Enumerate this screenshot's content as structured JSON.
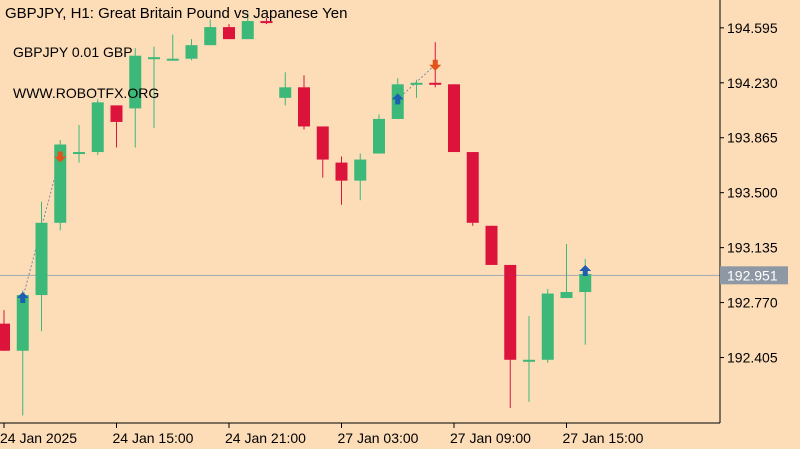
{
  "header": {
    "title": "GBPJPY, H1:  Great Britain Pound vs Japanese Yen",
    "lines": [
      "GBPJPY 0.01 GBP",
      "WWW.ROBOTFX.ORG"
    ]
  },
  "colors": {
    "background": "#fddcb8",
    "bull": "#3cb878",
    "bear": "#dc143c",
    "buy_arrow": "#1e5eb0",
    "sell_arrow": "#e2521b",
    "price_line": "#a0a8b4",
    "price_tag": "#8e98a4",
    "axis": "#000000",
    "connector": "#7a8aa0"
  },
  "chart_data": {
    "type": "candlestick",
    "symbol": "GBPJPY",
    "timeframe": "H1",
    "ylim": [
      191.97,
      194.78
    ],
    "y_ticks": [
      "194.595",
      "194.230",
      "193.865",
      "193.500",
      "193.135",
      "192.770",
      "192.405"
    ],
    "x_ticks": [
      {
        "label": "24 Jan 2025",
        "index": 0
      },
      {
        "label": "24 Jan 15:00",
        "index": 6
      },
      {
        "label": "24 Jan 21:00",
        "index": 12
      },
      {
        "label": "27 Jan 03:00",
        "index": 18
      },
      {
        "label": "27 Jan 09:00",
        "index": 24
      },
      {
        "label": "27 Jan 15:00",
        "index": 30
      }
    ],
    "current_price": "192.951",
    "candles": [
      {
        "o": 192.63,
        "h": 192.72,
        "l": 192.45,
        "c": 192.45
      },
      {
        "o": 192.45,
        "h": 192.85,
        "l": 192.02,
        "c": 192.82
      },
      {
        "o": 192.82,
        "h": 193.44,
        "l": 192.58,
        "c": 193.3
      },
      {
        "o": 193.3,
        "h": 193.85,
        "l": 193.25,
        "c": 193.82
      },
      {
        "o": 193.77,
        "h": 193.95,
        "l": 193.7,
        "c": 193.77
      },
      {
        "o": 193.77,
        "h": 194.12,
        "l": 193.75,
        "c": 194.1
      },
      {
        "o": 194.08,
        "h": 194.08,
        "l": 193.8,
        "c": 193.97
      },
      {
        "o": 194.06,
        "h": 194.46,
        "l": 193.8,
        "c": 194.41
      },
      {
        "o": 194.4,
        "h": 194.47,
        "l": 193.93,
        "c": 194.4
      },
      {
        "o": 194.39,
        "h": 194.55,
        "l": 194.38,
        "c": 194.39
      },
      {
        "o": 194.39,
        "h": 194.52,
        "l": 194.38,
        "c": 194.48
      },
      {
        "o": 194.48,
        "h": 194.65,
        "l": 194.48,
        "c": 194.6
      },
      {
        "o": 194.6,
        "h": 194.62,
        "l": 194.52,
        "c": 194.52
      },
      {
        "o": 194.52,
        "h": 194.7,
        "l": 194.52,
        "c": 194.64
      },
      {
        "o": 194.64,
        "h": 194.66,
        "l": 194.62,
        "c": 194.63
      },
      {
        "o": 194.13,
        "h": 194.3,
        "l": 194.08,
        "c": 194.2
      },
      {
        "o": 194.2,
        "h": 194.28,
        "l": 193.92,
        "c": 193.94
      },
      {
        "o": 193.94,
        "h": 193.94,
        "l": 193.6,
        "c": 193.72
      },
      {
        "o": 193.7,
        "h": 193.74,
        "l": 193.42,
        "c": 193.58
      },
      {
        "o": 193.58,
        "h": 193.76,
        "l": 193.45,
        "c": 193.72
      },
      {
        "o": 193.76,
        "h": 194.02,
        "l": 193.76,
        "c": 193.99
      },
      {
        "o": 193.99,
        "h": 194.26,
        "l": 193.99,
        "c": 194.22
      },
      {
        "o": 194.22,
        "h": 194.25,
        "l": 194.13,
        "c": 194.23
      },
      {
        "o": 194.23,
        "h": 194.5,
        "l": 194.2,
        "c": 194.22
      },
      {
        "o": 194.22,
        "h": 194.22,
        "l": 193.77,
        "c": 193.77
      },
      {
        "o": 193.77,
        "h": 193.77,
        "l": 193.28,
        "c": 193.3
      },
      {
        "o": 193.28,
        "h": 193.28,
        "l": 193.02,
        "c": 193.02
      },
      {
        "o": 193.02,
        "h": 193.02,
        "l": 192.07,
        "c": 192.39
      },
      {
        "o": 192.38,
        "h": 192.68,
        "l": 192.11,
        "c": 192.39
      },
      {
        "o": 192.39,
        "h": 192.86,
        "l": 192.37,
        "c": 192.83
      },
      {
        "o": 192.8,
        "h": 193.16,
        "l": 192.8,
        "c": 192.84
      },
      {
        "o": 192.84,
        "h": 193.06,
        "l": 192.49,
        "c": 192.96
      }
    ],
    "signals": [
      {
        "type": "buy",
        "index": 1,
        "price": 192.8
      },
      {
        "type": "sell",
        "index": 3,
        "price": 193.74
      },
      {
        "type": "buy",
        "index": 21,
        "price": 194.12
      },
      {
        "type": "sell",
        "index": 23,
        "price": 194.35
      },
      {
        "type": "buy",
        "index": 31,
        "price": 192.98
      }
    ],
    "connectors": [
      [
        0,
        1
      ],
      [
        2,
        3
      ]
    ]
  }
}
